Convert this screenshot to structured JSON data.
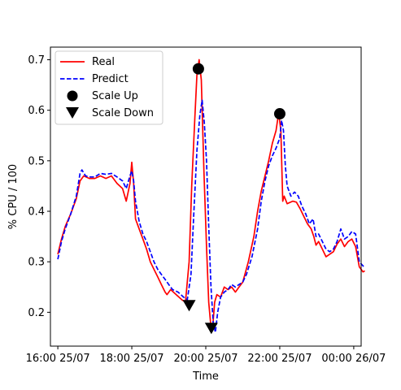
{
  "chart_data": {
    "type": "line",
    "title": "",
    "xlabel": "Time",
    "ylabel": "% CPU / 100",
    "x_unit": "hours since 16:00 25/07",
    "xlim": [
      -0.2,
      8.2
    ],
    "ylim": [
      0.133,
      0.725
    ],
    "x_ticks": [
      {
        "value": 0,
        "label": "16:00 25/07"
      },
      {
        "value": 2,
        "label": "18:00 25/07"
      },
      {
        "value": 4,
        "label": "20:00 25/07"
      },
      {
        "value": 6,
        "label": "22:00 25/07"
      },
      {
        "value": 8,
        "label": "00:00 26/07"
      }
    ],
    "y_ticks": [
      {
        "value": 0.2,
        "label": "0.2"
      },
      {
        "value": 0.3,
        "label": "0.3"
      },
      {
        "value": 0.4,
        "label": "0.4"
      },
      {
        "value": 0.5,
        "label": "0.5"
      },
      {
        "value": 0.6,
        "label": "0.6"
      },
      {
        "value": 0.7,
        "label": "0.7"
      }
    ],
    "grid": false,
    "legend_position": "top-left",
    "series": [
      {
        "name": "Real",
        "style": "solid",
        "color": "#ff0000",
        "points": [
          [
            0.0,
            0.315
          ],
          [
            0.1,
            0.345
          ],
          [
            0.2,
            0.37
          ],
          [
            0.35,
            0.395
          ],
          [
            0.5,
            0.425
          ],
          [
            0.6,
            0.46
          ],
          [
            0.7,
            0.47
          ],
          [
            0.85,
            0.465
          ],
          [
            1.0,
            0.465
          ],
          [
            1.15,
            0.47
          ],
          [
            1.3,
            0.465
          ],
          [
            1.45,
            0.47
          ],
          [
            1.6,
            0.455
          ],
          [
            1.75,
            0.445
          ],
          [
            1.85,
            0.42
          ],
          [
            1.95,
            0.455
          ],
          [
            2.0,
            0.497
          ],
          [
            2.05,
            0.455
          ],
          [
            2.1,
            0.385
          ],
          [
            2.2,
            0.365
          ],
          [
            2.3,
            0.345
          ],
          [
            2.4,
            0.325
          ],
          [
            2.5,
            0.3
          ],
          [
            2.6,
            0.285
          ],
          [
            2.7,
            0.27
          ],
          [
            2.8,
            0.255
          ],
          [
            2.9,
            0.24
          ],
          [
            2.95,
            0.235
          ],
          [
            3.05,
            0.245
          ],
          [
            3.2,
            0.235
          ],
          [
            3.35,
            0.225
          ],
          [
            3.45,
            0.22
          ],
          [
            3.55,
            0.3
          ],
          [
            3.62,
            0.45
          ],
          [
            3.7,
            0.58
          ],
          [
            3.76,
            0.67
          ],
          [
            3.82,
            0.7
          ],
          [
            3.88,
            0.66
          ],
          [
            3.95,
            0.48
          ],
          [
            4.02,
            0.33
          ],
          [
            4.08,
            0.22
          ],
          [
            4.14,
            0.17
          ],
          [
            4.18,
            0.165
          ],
          [
            4.24,
            0.22
          ],
          [
            4.3,
            0.235
          ],
          [
            4.4,
            0.23
          ],
          [
            4.5,
            0.25
          ],
          [
            4.6,
            0.245
          ],
          [
            4.7,
            0.25
          ],
          [
            4.8,
            0.24
          ],
          [
            4.9,
            0.25
          ],
          [
            5.0,
            0.26
          ],
          [
            5.15,
            0.3
          ],
          [
            5.3,
            0.35
          ],
          [
            5.4,
            0.4
          ],
          [
            5.5,
            0.44
          ],
          [
            5.6,
            0.47
          ],
          [
            5.7,
            0.5
          ],
          [
            5.8,
            0.535
          ],
          [
            5.9,
            0.56
          ],
          [
            5.97,
            0.595
          ],
          [
            6.03,
            0.56
          ],
          [
            6.08,
            0.42
          ],
          [
            6.12,
            0.43
          ],
          [
            6.2,
            0.415
          ],
          [
            6.35,
            0.42
          ],
          [
            6.45,
            0.418
          ],
          [
            6.55,
            0.405
          ],
          [
            6.65,
            0.39
          ],
          [
            6.75,
            0.375
          ],
          [
            6.85,
            0.365
          ],
          [
            6.92,
            0.35
          ],
          [
            6.98,
            0.333
          ],
          [
            7.05,
            0.34
          ],
          [
            7.15,
            0.325
          ],
          [
            7.25,
            0.31
          ],
          [
            7.35,
            0.315
          ],
          [
            7.45,
            0.32
          ],
          [
            7.55,
            0.335
          ],
          [
            7.65,
            0.345
          ],
          [
            7.75,
            0.33
          ],
          [
            7.85,
            0.34
          ],
          [
            7.95,
            0.345
          ],
          [
            8.05,
            0.33
          ],
          [
            8.15,
            0.29
          ],
          [
            8.25,
            0.28
          ],
          [
            8.3,
            0.282
          ]
        ]
      },
      {
        "name": "Predict",
        "style": "dashed",
        "color": "#0000ff",
        "points": [
          [
            0.0,
            0.305
          ],
          [
            0.1,
            0.34
          ],
          [
            0.2,
            0.365
          ],
          [
            0.35,
            0.395
          ],
          [
            0.5,
            0.43
          ],
          [
            0.6,
            0.475
          ],
          [
            0.65,
            0.482
          ],
          [
            0.75,
            0.47
          ],
          [
            0.85,
            0.468
          ],
          [
            1.0,
            0.468
          ],
          [
            1.15,
            0.475
          ],
          [
            1.3,
            0.473
          ],
          [
            1.45,
            0.475
          ],
          [
            1.6,
            0.468
          ],
          [
            1.75,
            0.46
          ],
          [
            1.85,
            0.445
          ],
          [
            1.95,
            0.47
          ],
          [
            2.0,
            0.48
          ],
          [
            2.05,
            0.46
          ],
          [
            2.1,
            0.42
          ],
          [
            2.2,
            0.38
          ],
          [
            2.3,
            0.355
          ],
          [
            2.4,
            0.34
          ],
          [
            2.5,
            0.32
          ],
          [
            2.6,
            0.3
          ],
          [
            2.7,
            0.285
          ],
          [
            2.8,
            0.275
          ],
          [
            2.9,
            0.265
          ],
          [
            3.0,
            0.255
          ],
          [
            3.1,
            0.245
          ],
          [
            3.25,
            0.24
          ],
          [
            3.4,
            0.23
          ],
          [
            3.5,
            0.225
          ],
          [
            3.6,
            0.275
          ],
          [
            3.68,
            0.4
          ],
          [
            3.76,
            0.52
          ],
          [
            3.84,
            0.59
          ],
          [
            3.9,
            0.62
          ],
          [
            3.96,
            0.575
          ],
          [
            4.02,
            0.5
          ],
          [
            4.08,
            0.37
          ],
          [
            4.14,
            0.25
          ],
          [
            4.2,
            0.18
          ],
          [
            4.26,
            0.16
          ],
          [
            4.32,
            0.2
          ],
          [
            4.4,
            0.23
          ],
          [
            4.5,
            0.24
          ],
          [
            4.6,
            0.245
          ],
          [
            4.7,
            0.255
          ],
          [
            4.8,
            0.25
          ],
          [
            4.9,
            0.255
          ],
          [
            5.0,
            0.26
          ],
          [
            5.1,
            0.275
          ],
          [
            5.25,
            0.31
          ],
          [
            5.4,
            0.365
          ],
          [
            5.5,
            0.42
          ],
          [
            5.6,
            0.46
          ],
          [
            5.7,
            0.49
          ],
          [
            5.8,
            0.51
          ],
          [
            5.9,
            0.525
          ],
          [
            6.0,
            0.545
          ],
          [
            6.05,
            0.58
          ],
          [
            6.1,
            0.56
          ],
          [
            6.15,
            0.49
          ],
          [
            6.2,
            0.45
          ],
          [
            6.3,
            0.43
          ],
          [
            6.4,
            0.438
          ],
          [
            6.5,
            0.43
          ],
          [
            6.6,
            0.41
          ],
          [
            6.7,
            0.395
          ],
          [
            6.8,
            0.375
          ],
          [
            6.9,
            0.385
          ],
          [
            6.98,
            0.35
          ],
          [
            7.05,
            0.355
          ],
          [
            7.15,
            0.34
          ],
          [
            7.25,
            0.325
          ],
          [
            7.35,
            0.32
          ],
          [
            7.45,
            0.325
          ],
          [
            7.55,
            0.34
          ],
          [
            7.65,
            0.365
          ],
          [
            7.75,
            0.345
          ],
          [
            7.85,
            0.35
          ],
          [
            7.95,
            0.36
          ],
          [
            8.05,
            0.355
          ],
          [
            8.15,
            0.3
          ],
          [
            8.25,
            0.292
          ],
          [
            8.3,
            0.288
          ]
        ]
      },
      {
        "name": "Scale Up",
        "marker": "circle",
        "color": "#000000",
        "points": [
          [
            3.8,
            0.682
          ],
          [
            6.0,
            0.593
          ]
        ]
      },
      {
        "name": "Scale Down",
        "marker": "triangle-down",
        "color": "#000000",
        "points": [
          [
            3.55,
            0.213
          ],
          [
            4.15,
            0.168
          ]
        ]
      }
    ]
  }
}
